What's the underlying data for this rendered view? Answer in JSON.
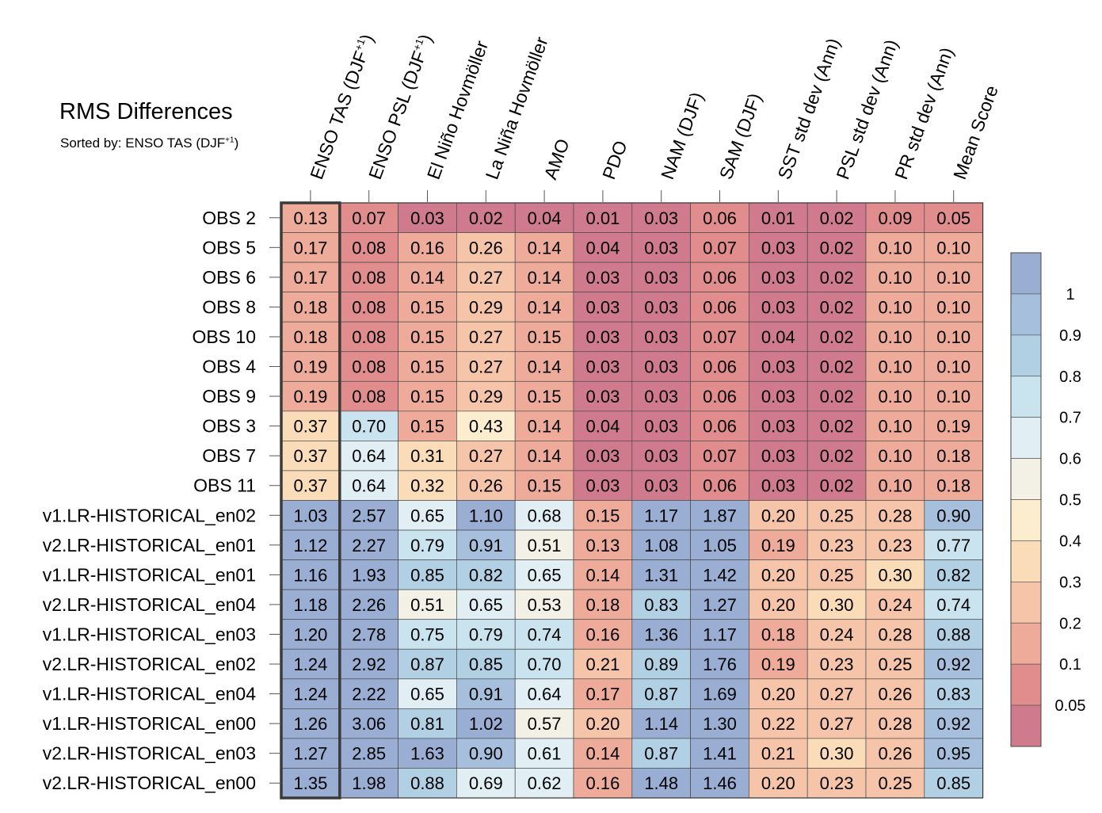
{
  "chart_data": {
    "type": "heatmap",
    "title": "RMS Differences",
    "subtitle": "Sorted by: ENSO TAS (DJF",
    "subtitle_sup": "+1",
    "subtitle_close": ")",
    "columns": [
      {
        "label": "ENSO TAS (DJF",
        "sup": "+1",
        "suffix": ")"
      },
      {
        "label": "ENSO PSL (DJF",
        "sup": "+1",
        "suffix": ")"
      },
      {
        "label": "El Niño Hovmöller"
      },
      {
        "label": "La Niña Hovmöller"
      },
      {
        "label": "AMO"
      },
      {
        "label": "PDO"
      },
      {
        "label": "NAM (DJF)"
      },
      {
        "label": "SAM (DJF)"
      },
      {
        "label": "SST std dev (Ann)"
      },
      {
        "label": "PSL std dev (Ann)"
      },
      {
        "label": "PR std dev (Ann)"
      },
      {
        "label": "Mean Score"
      }
    ],
    "rows": [
      "OBS 2",
      "OBS 5",
      "OBS 6",
      "OBS 8",
      "OBS 10",
      "OBS 4",
      "OBS 9",
      "OBS 3",
      "OBS 7",
      "OBS 11",
      "v1.LR-HISTORICAL_en02",
      "v2.LR-HISTORICAL_en01",
      "v1.LR-HISTORICAL_en01",
      "v2.LR-HISTORICAL_en04",
      "v1.LR-HISTORICAL_en03",
      "v2.LR-HISTORICAL_en02",
      "v1.LR-HISTORICAL_en04",
      "v1.LR-HISTORICAL_en00",
      "v2.LR-HISTORICAL_en03",
      "v2.LR-HISTORICAL_en00"
    ],
    "values": [
      [
        "0.13",
        "0.07",
        "0.03",
        "0.02",
        "0.04",
        "0.01",
        "0.03",
        "0.06",
        "0.01",
        "0.02",
        "0.09",
        "0.05"
      ],
      [
        "0.17",
        "0.08",
        "0.16",
        "0.26",
        "0.14",
        "0.04",
        "0.03",
        "0.07",
        "0.03",
        "0.02",
        "0.10",
        "0.10"
      ],
      [
        "0.17",
        "0.08",
        "0.14",
        "0.27",
        "0.14",
        "0.03",
        "0.03",
        "0.06",
        "0.03",
        "0.02",
        "0.10",
        "0.10"
      ],
      [
        "0.18",
        "0.08",
        "0.15",
        "0.29",
        "0.14",
        "0.03",
        "0.03",
        "0.06",
        "0.03",
        "0.02",
        "0.10",
        "0.10"
      ],
      [
        "0.18",
        "0.08",
        "0.15",
        "0.27",
        "0.15",
        "0.03",
        "0.03",
        "0.07",
        "0.04",
        "0.02",
        "0.10",
        "0.10"
      ],
      [
        "0.19",
        "0.08",
        "0.15",
        "0.27",
        "0.14",
        "0.03",
        "0.03",
        "0.06",
        "0.03",
        "0.02",
        "0.10",
        "0.10"
      ],
      [
        "0.19",
        "0.08",
        "0.15",
        "0.29",
        "0.15",
        "0.03",
        "0.03",
        "0.06",
        "0.03",
        "0.02",
        "0.10",
        "0.10"
      ],
      [
        "0.37",
        "0.70",
        "0.15",
        "0.43",
        "0.14",
        "0.04",
        "0.03",
        "0.06",
        "0.03",
        "0.02",
        "0.10",
        "0.19"
      ],
      [
        "0.37",
        "0.64",
        "0.31",
        "0.27",
        "0.14",
        "0.03",
        "0.03",
        "0.07",
        "0.03",
        "0.02",
        "0.10",
        "0.18"
      ],
      [
        "0.37",
        "0.64",
        "0.32",
        "0.26",
        "0.15",
        "0.03",
        "0.03",
        "0.06",
        "0.03",
        "0.02",
        "0.10",
        "0.18"
      ],
      [
        "1.03",
        "2.57",
        "0.65",
        "1.10",
        "0.68",
        "0.15",
        "1.17",
        "1.87",
        "0.20",
        "0.25",
        "0.28",
        "0.90"
      ],
      [
        "1.12",
        "2.27",
        "0.79",
        "0.91",
        "0.51",
        "0.13",
        "1.08",
        "1.05",
        "0.19",
        "0.23",
        "0.23",
        "0.77"
      ],
      [
        "1.16",
        "1.93",
        "0.85",
        "0.82",
        "0.65",
        "0.14",
        "1.31",
        "1.42",
        "0.20",
        "0.25",
        "0.30",
        "0.82"
      ],
      [
        "1.18",
        "2.26",
        "0.51",
        "0.65",
        "0.53",
        "0.18",
        "0.83",
        "1.27",
        "0.20",
        "0.30",
        "0.24",
        "0.74"
      ],
      [
        "1.20",
        "2.78",
        "0.75",
        "0.79",
        "0.74",
        "0.16",
        "1.36",
        "1.17",
        "0.18",
        "0.24",
        "0.28",
        "0.88"
      ],
      [
        "1.24",
        "2.92",
        "0.87",
        "0.85",
        "0.70",
        "0.21",
        "0.89",
        "1.76",
        "0.19",
        "0.23",
        "0.25",
        "0.92"
      ],
      [
        "1.24",
        "2.22",
        "0.65",
        "0.91",
        "0.64",
        "0.17",
        "0.87",
        "1.69",
        "0.20",
        "0.27",
        "0.26",
        "0.83"
      ],
      [
        "1.26",
        "3.06",
        "0.81",
        "1.02",
        "0.57",
        "0.20",
        "1.14",
        "1.30",
        "0.22",
        "0.27",
        "0.28",
        "0.92"
      ],
      [
        "1.27",
        "2.85",
        "1.63",
        "0.90",
        "0.61",
        "0.14",
        "0.87",
        "1.41",
        "0.21",
        "0.30",
        "0.26",
        "0.95"
      ],
      [
        "1.35",
        "1.98",
        "0.88",
        "0.69",
        "0.62",
        "0.16",
        "1.48",
        "1.46",
        "0.20",
        "0.23",
        "0.25",
        "0.85"
      ]
    ],
    "highlighted_column": 0,
    "colorbar": {
      "levels": [
        "0.05",
        "0.1",
        "0.2",
        "0.3",
        "0.4",
        "0.5",
        "0.6",
        "0.7",
        "0.8",
        "0.9",
        "1"
      ],
      "colors": [
        "#d07b8d",
        "#e28d8d",
        "#eeab9a",
        "#f6c4a8",
        "#fbdcb9",
        "#fdedcf",
        "#f3f1e6",
        "#e1eff4",
        "#cae4ef",
        "#b1d0e4",
        "#a6bfdd",
        "#9aaed3"
      ]
    }
  }
}
